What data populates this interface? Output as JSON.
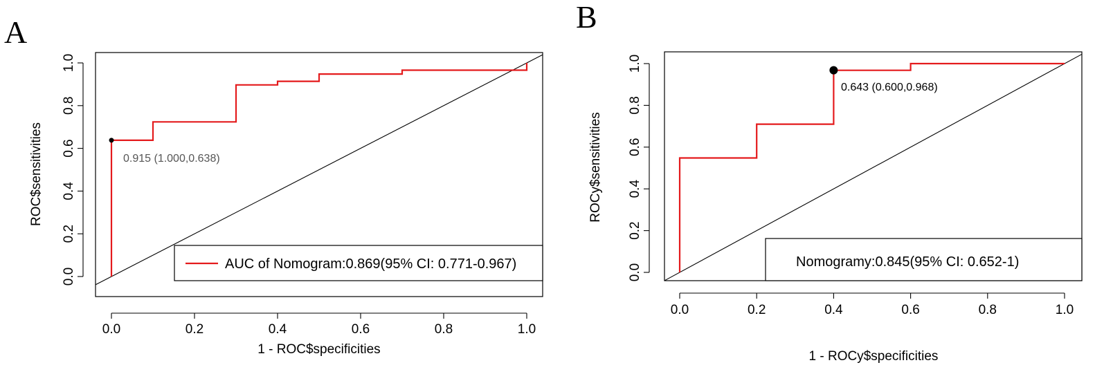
{
  "chart_data": [
    {
      "type": "line",
      "panel_label": "A",
      "xlabel": "1 - ROC$specificities",
      "ylabel": "ROC$sensitivities",
      "xlim": [
        0,
        1
      ],
      "ylim": [
        0,
        1
      ],
      "x_ticks": [
        "0.0",
        "0.2",
        "0.4",
        "0.6",
        "0.8",
        "1.0"
      ],
      "y_ticks": [
        "0.0",
        "0.2",
        "0.4",
        "0.6",
        "0.8",
        "1.0"
      ],
      "grid": false,
      "series": [
        {
          "name": "AUC of Nomogram:0.869(95% CI: 0.771-0.967)",
          "color": "#e41a1c",
          "x": [
            0,
            0,
            0.1,
            0.1,
            0.3,
            0.3,
            0.4,
            0.4,
            0.5,
            0.5,
            0.7,
            0.7,
            1.0,
            1.0
          ],
          "y": [
            0,
            0.638,
            0.638,
            0.724,
            0.724,
            0.897,
            0.897,
            0.914,
            0.914,
            0.948,
            0.948,
            0.966,
            0.966,
            1.0
          ]
        }
      ],
      "reference_line": {
        "x": [
          0,
          1
        ],
        "y": [
          0,
          1
        ],
        "color": "#000000"
      },
      "best_point": {
        "x": 0,
        "y": 0.638,
        "label": "0.915 (1.000,0.638)",
        "label_color": "#555555"
      },
      "legend": {
        "placement": "bottom-right",
        "entries": [
          {
            "label": "AUC of Nomogram:0.869(95% CI: 0.771-0.967)",
            "color": "#e41a1c",
            "marker": "line"
          }
        ]
      }
    },
    {
      "type": "line",
      "panel_label": "B",
      "xlabel": "1 - ROCy$specificities",
      "ylabel": "ROCy$sensitivities",
      "xlim": [
        0,
        1
      ],
      "ylim": [
        0,
        1
      ],
      "x_ticks": [
        "0.0",
        "0.2",
        "0.4",
        "0.6",
        "0.8",
        "1.0"
      ],
      "y_ticks": [
        "0.0",
        "0.2",
        "0.4",
        "0.6",
        "0.8",
        "1.0"
      ],
      "grid": false,
      "series": [
        {
          "name": "Nomogramy:0.845(95% CI: 0.652-1)",
          "color": "#e41a1c",
          "x": [
            0,
            0,
            0.2,
            0.2,
            0.4,
            0.4,
            0.6,
            0.6,
            1.0
          ],
          "y": [
            0,
            0.548,
            0.548,
            0.71,
            0.71,
            0.968,
            0.968,
            1.0,
            1.0
          ]
        }
      ],
      "reference_line": {
        "x": [
          0,
          1
        ],
        "y": [
          0,
          1
        ],
        "color": "#000000"
      },
      "best_point": {
        "x": 0.4,
        "y": 0.968,
        "label": "0.643 (0.600,0.968)",
        "label_color": "#000000"
      },
      "legend": {
        "placement": "bottom-right",
        "entries": [
          {
            "label": "Nomogramy:0.845(95% CI: 0.652-1)",
            "color": null,
            "marker": "none"
          }
        ]
      }
    }
  ]
}
